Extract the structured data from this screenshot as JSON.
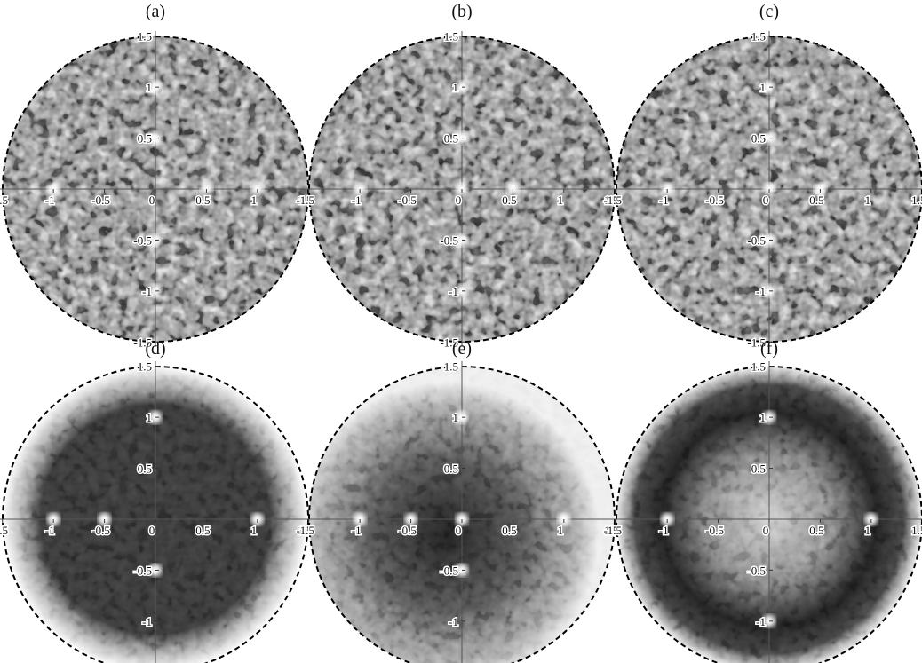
{
  "chart_data": [
    {
      "type": "scatter",
      "title": "(a)",
      "x": [
        -1,
        0.5,
        1,
        0,
        0,
        0,
        0
      ],
      "y": [
        0,
        0,
        0,
        1,
        0.5,
        -0.5,
        -1
      ],
      "xlim": [
        -1.55,
        1.55
      ],
      "ylim": [
        -1.55,
        1.55
      ],
      "xticks": [
        -1.5,
        -1,
        -0.5,
        0,
        0.5,
        1,
        1.5
      ],
      "yticks": [
        -1.5,
        -1,
        -0.5,
        0.5,
        1,
        1.5
      ]
    },
    {
      "type": "scatter",
      "title": "(b)",
      "x": [
        -1,
        0,
        0.5,
        0,
        0,
        0,
        0
      ],
      "y": [
        0,
        0,
        0,
        1,
        0.5,
        -0.5,
        -1
      ],
      "xlim": [
        -1.55,
        1.55
      ],
      "ylim": [
        -1.55,
        1.55
      ],
      "xticks": [
        -1.5,
        -1,
        -0.5,
        0,
        0.5,
        1,
        1.5
      ],
      "yticks": [
        -1.5,
        -1,
        -0.5,
        0.5,
        1,
        1.5
      ]
    },
    {
      "type": "scatter",
      "title": "(c)",
      "x": [
        -1,
        0,
        0.5,
        0,
        0,
        0,
        0
      ],
      "y": [
        0,
        0,
        0,
        1,
        0.5,
        -0.5,
        -1
      ],
      "xlim": [
        -1.55,
        1.55
      ],
      "ylim": [
        -1.55,
        1.55
      ],
      "xticks": [
        -1.5,
        -1,
        -0.5,
        0,
        0.5,
        1,
        1.5
      ],
      "yticks": [
        -1.5,
        -1,
        -0.5,
        0.5,
        1,
        1.5
      ]
    },
    {
      "type": "scatter",
      "title": "(d)",
      "x": [
        -1,
        -0.5,
        1,
        0,
        0
      ],
      "y": [
        0,
        0,
        0,
        1,
        -0.5
      ],
      "xlim": [
        -1.55,
        1.55
      ],
      "ylim": [
        -1.55,
        1.55
      ],
      "xticks": [
        -1.5,
        -1,
        -0.5,
        0,
        0.5,
        1,
        1.5
      ],
      "yticks": [
        -1.5,
        -1,
        -0.5,
        0.5,
        1,
        1.5
      ]
    },
    {
      "type": "scatter",
      "title": "(e)",
      "x": [
        -1,
        -0.5,
        0,
        1,
        0,
        0
      ],
      "y": [
        0,
        0,
        0,
        0,
        1,
        -0.5
      ],
      "xlim": [
        -1.55,
        1.55
      ],
      "ylim": [
        -1.55,
        1.55
      ],
      "xticks": [
        -1.5,
        -1,
        -0.5,
        0,
        0.5,
        1,
        1.5
      ],
      "yticks": [
        -1.5,
        -1,
        -0.5,
        0.5,
        1,
        1.5
      ]
    },
    {
      "type": "scatter",
      "title": "(f)",
      "x": [
        -1,
        1,
        0,
        0
      ],
      "y": [
        0,
        0,
        1,
        -1
      ],
      "xlim": [
        -1.55,
        1.55
      ],
      "ylim": [
        -1.55,
        1.55
      ],
      "xticks": [
        -1.5,
        -1,
        -0.5,
        0,
        0.5,
        1,
        1.5
      ],
      "yticks": [
        -1.5,
        -1,
        -0.5,
        0.5,
        1,
        1.5
      ]
    }
  ]
}
